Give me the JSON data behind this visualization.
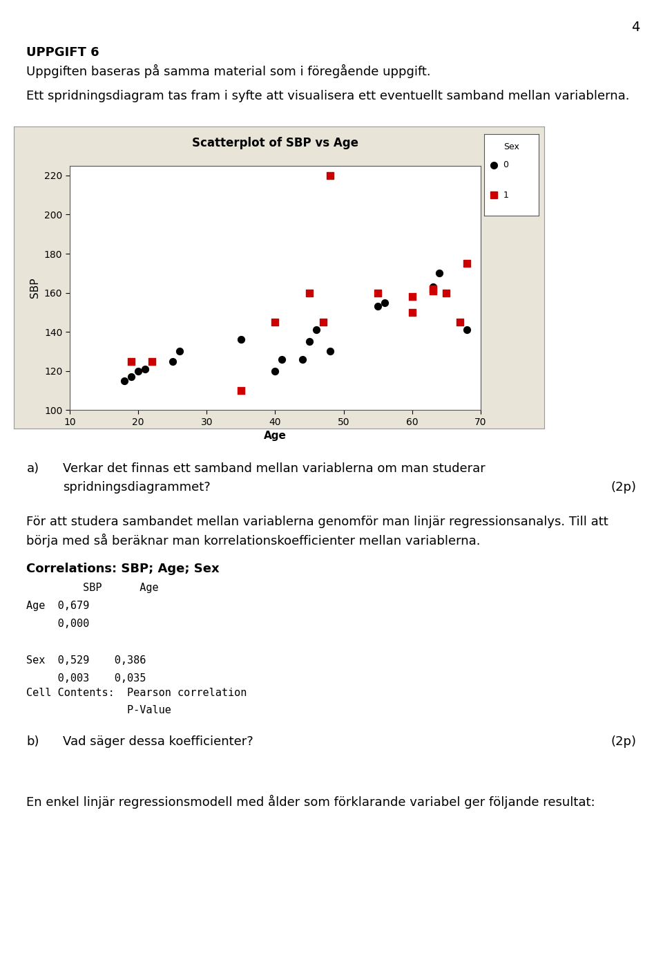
{
  "page_number": "4",
  "title_bold": "UPPGIFT 6",
  "title_sub": "Uppgiften baseras på samma material som i föregående uppgift.",
  "para1": "Ett spridningsdiagram tas fram i syfte att visualisera ett eventuellt samband mellan variablerna.",
  "plot_title": "Scatterplot of SBP vs Age",
  "xlabel": "Age",
  "ylabel": "SBP",
  "xlim": [
    10,
    70
  ],
  "ylim": [
    100,
    225
  ],
  "xticks": [
    10,
    20,
    30,
    40,
    50,
    60,
    70
  ],
  "yticks": [
    100,
    120,
    140,
    160,
    180,
    200,
    220
  ],
  "sex0_age": [
    18,
    19,
    20,
    21,
    25,
    26,
    35,
    40,
    41,
    44,
    45,
    46,
    48,
    55,
    56,
    63,
    64,
    68
  ],
  "sex0_sbp": [
    115,
    117,
    120,
    121,
    125,
    130,
    136,
    120,
    126,
    126,
    135,
    141,
    130,
    153,
    155,
    163,
    170,
    141
  ],
  "sex1_age": [
    19,
    22,
    35,
    40,
    45,
    47,
    48,
    55,
    60,
    60,
    63,
    63,
    65,
    67,
    68
  ],
  "sex1_sbp": [
    125,
    125,
    110,
    145,
    160,
    145,
    220,
    160,
    158,
    150,
    161,
    162,
    160,
    145,
    175
  ],
  "outer_bg": "#e8e4d8",
  "sex0_color": "#000000",
  "sex1_color": "#cc0000",
  "bg_color": "#ffffff",
  "text_color": "#000000",
  "corr_title": "Correlations: SBP; Age; Sex",
  "question_a_points": "(2p)",
  "question_b_points": "(2p)",
  "para3": "En enkel linjär regressionsmodell med ålder som förklarande variabel ger följande resultat:"
}
